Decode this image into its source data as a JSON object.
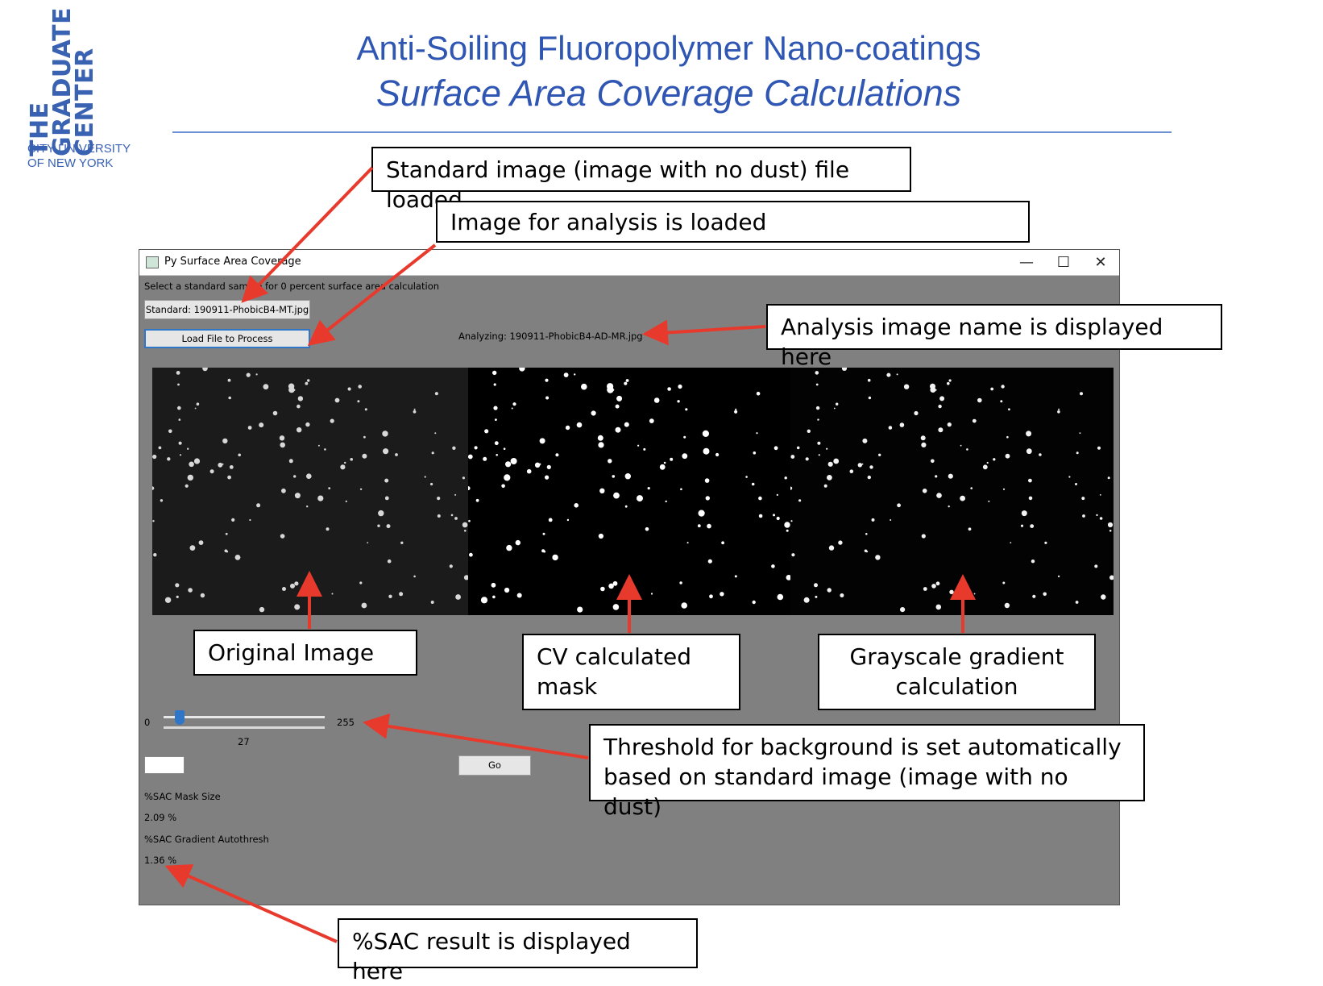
{
  "logo": {
    "lines": [
      "THE",
      "GRADUATE",
      "CENTER"
    ],
    "subline_1": "CITY UNIVERSITY",
    "subline_2": "OF NEW YORK"
  },
  "slide": {
    "title": "Anti-Soiling Fluoropolymer Nano-coatings",
    "subtitle": "Surface Area Coverage Calculations"
  },
  "callouts": {
    "standard_loaded": "Standard image (image with no dust) file loaded",
    "analysis_loaded": "Image for analysis is loaded",
    "analysis_name": "Analysis image name is displayed here",
    "original": "Original Image",
    "cv_mask_1": "CV calculated",
    "cv_mask_2": "mask",
    "gradient_1": "Grayscale gradient",
    "gradient_2": "calculation",
    "threshold_1": "Threshold for background is set automatically",
    "threshold_2": "based on standard image (image with no dust)",
    "sac_result": "%SAC result is displayed here"
  },
  "window": {
    "title": "Py Surface Area Coverage",
    "minimize": "—",
    "maximize": "☐",
    "close": "✕",
    "instruction": "Select a standard sample for 0 percent surface area calculation",
    "standard_button": "Standard: 190911-PhobicB4-MT.jpg",
    "load_button": "Load File to Process",
    "analyzing_label": "Analyzing: 190911-PhobicB4-AD-MR.jpg",
    "slider": {
      "min_label": "0",
      "max_label": "255",
      "value": 27,
      "value_label": "27"
    },
    "go_button": "Go",
    "mask_size_label": "%SAC Mask Size",
    "mask_size_value": "2.09 %",
    "gradient_label": "%SAC Gradient Autothresh",
    "gradient_value": "1.36 %"
  },
  "colors": {
    "title_blue": "#2f56b3",
    "arrow_red": "#e83a2c",
    "window_gray": "#808080"
  }
}
